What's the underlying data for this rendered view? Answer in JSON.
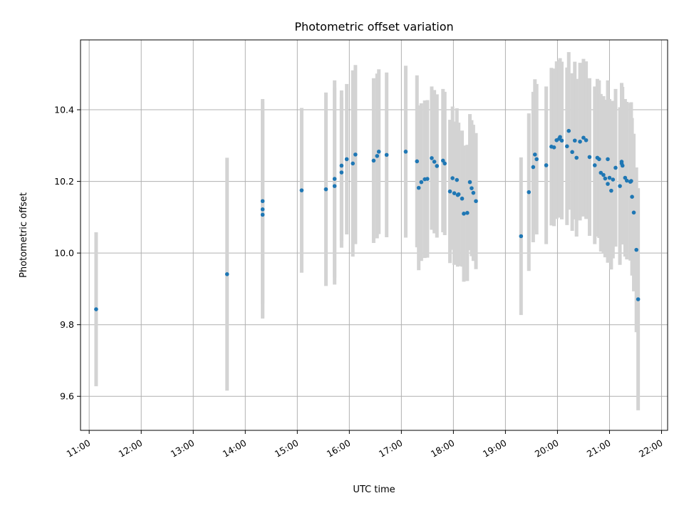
{
  "chart_data": {
    "type": "scatter",
    "title": "Photometric offset variation",
    "xlabel": "UTC time",
    "ylabel": "Photometric offset",
    "xlim": [
      "10:50",
      "22:07"
    ],
    "ylim": [
      9.505,
      10.595
    ],
    "grid": true,
    "colors": {
      "point": "#1f77b4",
      "errorbar": "#d3d3d3",
      "grid": "#b0b0b0",
      "axes": "#000000"
    },
    "x_ticks": [
      "11:00",
      "12:00",
      "13:00",
      "14:00",
      "15:00",
      "16:00",
      "17:00",
      "18:00",
      "19:00",
      "20:00",
      "21:00",
      "22:00"
    ],
    "y_ticks": [
      9.6,
      9.8,
      10.0,
      10.2,
      10.4
    ],
    "y_tick_labels": [
      "9.6",
      "9.8",
      "10.0",
      "10.2",
      "10.4"
    ],
    "series": [
      {
        "x": [
          "11:08",
          "13:39",
          "14:20",
          "14:20",
          "14:20",
          "15:05",
          "15:33",
          "15:43",
          "15:43",
          "15:51",
          "15:51",
          "15:57",
          "16:04",
          "16:07",
          "16:28",
          "16:32",
          "16:34",
          "16:43",
          "17:05",
          "17:18",
          "17:20",
          "17:23",
          "17:27",
          "17:30",
          "17:35",
          "17:38",
          "17:41",
          "17:48",
          "17:50",
          "17:56",
          "17:59",
          "18:01",
          "18:04",
          "18:05",
          "18:06",
          "18:10",
          "18:12",
          "18:16",
          "18:19",
          "18:21",
          "18:23",
          "18:26",
          "19:18",
          "19:27",
          "19:32",
          "19:34",
          "19:36",
          "19:47",
          "19:53",
          "19:56",
          "19:59",
          "20:02",
          "20:03",
          "20:05",
          "20:11",
          "20:13",
          "20:17",
          "20:20",
          "20:22",
          "20:26",
          "20:30",
          "20:33",
          "20:37",
          "20:43",
          "20:46",
          "20:48",
          "20:50",
          "20:53",
          "20:55",
          "20:58",
          "20:58",
          "21:00",
          "21:02",
          "21:04",
          "21:07",
          "21:12",
          "21:14",
          "21:14",
          "21:15",
          "21:18",
          "21:20",
          "21:24",
          "21:25",
          "21:26",
          "21:28",
          "21:31",
          "21:33"
        ],
        "y": [
          9.843,
          9.941,
          10.107,
          10.122,
          10.145,
          10.175,
          10.178,
          10.187,
          10.207,
          10.225,
          10.244,
          10.262,
          10.25,
          10.275,
          10.258,
          10.271,
          10.283,
          10.274,
          10.283,
          10.256,
          10.182,
          10.198,
          10.206,
          10.207,
          10.265,
          10.255,
          10.243,
          10.258,
          10.25,
          10.172,
          10.209,
          10.167,
          10.204,
          10.162,
          10.164,
          10.152,
          10.11,
          10.112,
          10.198,
          10.181,
          10.168,
          10.145,
          10.047,
          10.17,
          10.24,
          10.275,
          10.262,
          10.245,
          10.297,
          10.295,
          10.315,
          10.319,
          10.324,
          10.314,
          10.298,
          10.341,
          10.282,
          10.314,
          10.266,
          10.311,
          10.322,
          10.315,
          10.268,
          10.245,
          10.266,
          10.262,
          10.224,
          10.218,
          10.208,
          10.262,
          10.193,
          10.21,
          10.174,
          10.205,
          10.238,
          10.187,
          10.255,
          10.25,
          10.244,
          10.21,
          10.202,
          10.199,
          10.201,
          10.157,
          10.113,
          10.009,
          9.871
        ],
        "err": [
          0.215,
          0.325,
          0.29,
          0.3,
          0.285,
          0.23,
          0.27,
          0.275,
          0.275,
          0.21,
          0.21,
          0.21,
          0.26,
          0.25,
          0.23,
          0.23,
          0.23,
          0.23,
          0.24,
          0.24,
          0.23,
          0.22,
          0.22,
          0.22,
          0.2,
          0.2,
          0.2,
          0.2,
          0.2,
          0.2,
          0.2,
          0.2,
          0.2,
          0.2,
          0.2,
          0.19,
          0.19,
          0.19,
          0.19,
          0.19,
          0.19,
          0.19,
          0.22,
          0.22,
          0.21,
          0.21,
          0.21,
          0.22,
          0.22,
          0.22,
          0.22,
          0.22,
          0.22,
          0.22,
          0.22,
          0.22,
          0.22,
          0.22,
          0.22,
          0.22,
          0.22,
          0.22,
          0.22,
          0.22,
          0.22,
          0.22,
          0.22,
          0.22,
          0.22,
          0.22,
          0.22,
          0.22,
          0.22,
          0.22,
          0.22,
          0.22,
          0.22,
          0.22,
          0.22,
          0.22,
          0.22,
          0.22,
          0.22,
          0.22,
          0.22,
          0.23,
          0.31
        ]
      }
    ]
  }
}
